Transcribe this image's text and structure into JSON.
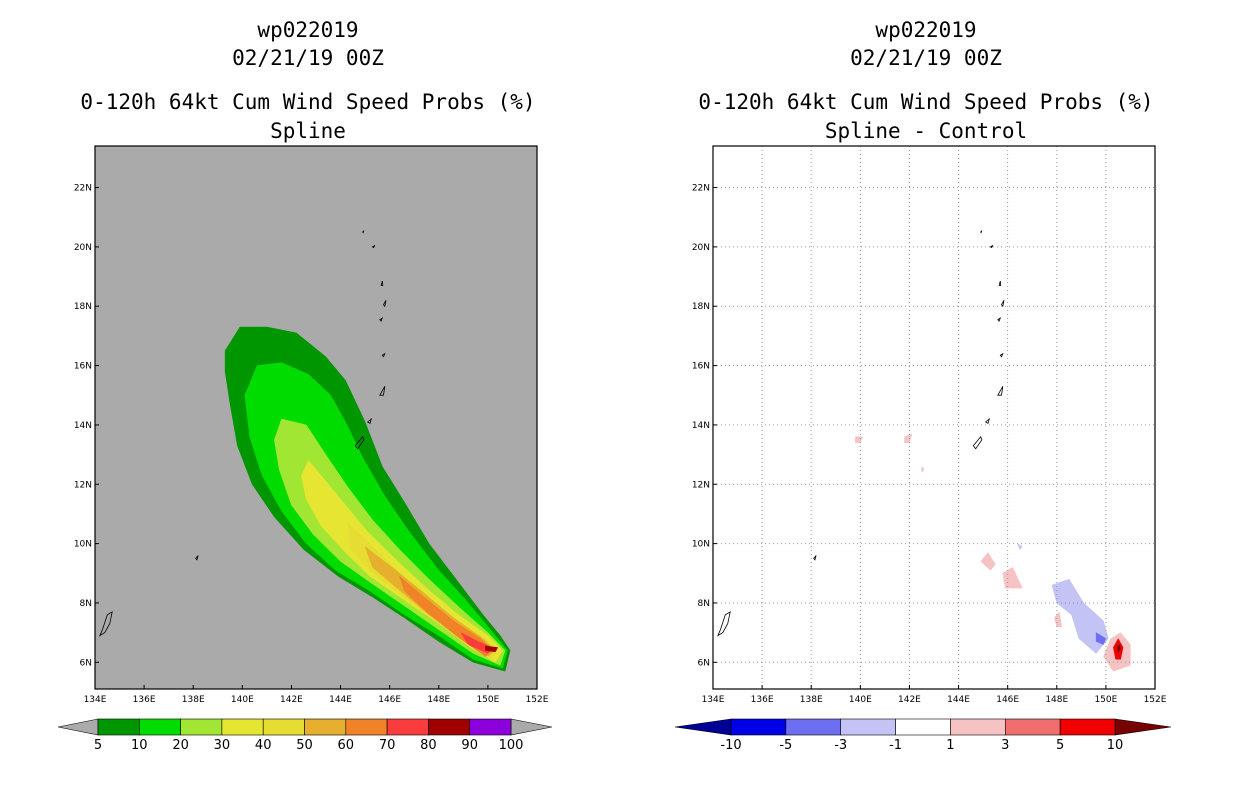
{
  "colors": {
    "map_background_left": "#aaaaaa",
    "map_background_right": "#ffffff",
    "grid": "#999999",
    "coast": "#000000"
  },
  "chart_data": [
    {
      "type": "heatmap",
      "storm_id": "wp022019",
      "date": "02/21/19 00Z",
      "title": "0-120h 64kt Cum Wind Speed Probs (%)",
      "subtitle": "Spline",
      "x_ticks": [
        "134E",
        "136E",
        "138E",
        "140E",
        "142E",
        "144E",
        "146E",
        "148E",
        "150E",
        "152E"
      ],
      "y_ticks": [
        "6N",
        "8N",
        "10N",
        "12N",
        "14N",
        "16N",
        "18N",
        "20N",
        "22N"
      ],
      "xlim": [
        134,
        152
      ],
      "ylim": [
        5.1,
        23.4
      ],
      "grid": false,
      "colorbar": {
        "labels": [
          "5",
          "10",
          "20",
          "30",
          "40",
          "50",
          "60",
          "70",
          "80",
          "90",
          "100"
        ],
        "colors": [
          "#009600",
          "#00dc00",
          "#a0e632",
          "#e6e632",
          "#e6dc32",
          "#e6af2d",
          "#f08228",
          "#fa3c3c",
          "#a00000",
          "#8c00dc"
        ],
        "under_color": "#aaaaaa",
        "over_color": "#aaaaaa"
      },
      "contours": [
        {
          "level": 5,
          "color": "#009600",
          "points": [
            [
              139.9,
              17.3
            ],
            [
              141.0,
              17.3
            ],
            [
              142.2,
              17.1
            ],
            [
              143.4,
              16.3
            ],
            [
              144.2,
              15.5
            ],
            [
              145.0,
              14.1
            ],
            [
              145.7,
              12.6
            ],
            [
              146.6,
              11.4
            ],
            [
              147.6,
              10.0
            ],
            [
              148.8,
              8.7
            ],
            [
              149.8,
              7.6
            ],
            [
              150.5,
              6.9
            ],
            [
              150.9,
              6.4
            ],
            [
              150.7,
              5.7
            ],
            [
              149.4,
              6.0
            ],
            [
              148.0,
              6.7
            ],
            [
              146.6,
              7.5
            ],
            [
              145.3,
              8.2
            ],
            [
              143.9,
              8.9
            ],
            [
              142.5,
              9.8
            ],
            [
              141.3,
              10.9
            ],
            [
              140.4,
              12.0
            ],
            [
              139.8,
              13.3
            ],
            [
              139.5,
              14.7
            ],
            [
              139.3,
              15.8
            ],
            [
              139.3,
              16.5
            ]
          ]
        },
        {
          "level": 10,
          "color": "#00dc00",
          "points": [
            [
              140.6,
              16.0
            ],
            [
              141.6,
              16.1
            ],
            [
              142.7,
              15.7
            ],
            [
              143.6,
              15.0
            ],
            [
              144.2,
              14.1
            ],
            [
              144.9,
              12.9
            ],
            [
              145.8,
              11.6
            ],
            [
              146.8,
              10.4
            ],
            [
              148.0,
              9.1
            ],
            [
              149.1,
              8.1
            ],
            [
              150.2,
              7.0
            ],
            [
              150.8,
              6.4
            ],
            [
              150.6,
              5.8
            ],
            [
              149.4,
              6.1
            ],
            [
              148.0,
              6.9
            ],
            [
              146.6,
              7.6
            ],
            [
              145.2,
              8.4
            ],
            [
              143.8,
              9.1
            ],
            [
              142.6,
              10.0
            ],
            [
              141.6,
              11.1
            ],
            [
              140.8,
              12.3
            ],
            [
              140.3,
              13.6
            ],
            [
              140.1,
              15.0
            ]
          ]
        },
        {
          "level": 20,
          "color": "#a0e632",
          "points": [
            [
              141.6,
              14.2
            ],
            [
              142.6,
              14.0
            ],
            [
              143.4,
              13.0
            ],
            [
              144.3,
              11.9
            ],
            [
              145.3,
              10.8
            ],
            [
              146.4,
              9.8
            ],
            [
              147.6,
              8.8
            ],
            [
              148.9,
              7.8
            ],
            [
              150.0,
              7.0
            ],
            [
              150.7,
              6.4
            ],
            [
              150.5,
              5.9
            ],
            [
              149.4,
              6.3
            ],
            [
              148.0,
              7.1
            ],
            [
              146.6,
              7.9
            ],
            [
              145.2,
              8.7
            ],
            [
              144.0,
              9.4
            ],
            [
              142.9,
              10.3
            ],
            [
              142.0,
              11.3
            ],
            [
              141.5,
              12.5
            ],
            [
              141.3,
              13.5
            ]
          ]
        },
        {
          "level": 30,
          "color": "#e6e632",
          "points": [
            [
              142.7,
              12.8
            ],
            [
              143.3,
              12.2
            ],
            [
              144.2,
              11.3
            ],
            [
              145.1,
              10.4
            ],
            [
              146.2,
              9.5
            ],
            [
              147.5,
              8.5
            ],
            [
              148.8,
              7.6
            ],
            [
              150.0,
              6.9
            ],
            [
              150.6,
              6.4
            ],
            [
              150.3,
              6.0
            ],
            [
              149.3,
              6.5
            ],
            [
              148.0,
              7.3
            ],
            [
              146.6,
              8.1
            ],
            [
              145.2,
              8.9
            ],
            [
              144.2,
              9.7
            ],
            [
              143.2,
              10.6
            ],
            [
              142.6,
              11.5
            ],
            [
              142.4,
              12.3
            ]
          ]
        },
        {
          "level": 40,
          "color": "#e6dc32",
          "points": [
            [
              144.3,
              10.7
            ],
            [
              145.2,
              10.0
            ],
            [
              146.3,
              9.1
            ],
            [
              147.5,
              8.2
            ],
            [
              148.8,
              7.4
            ],
            [
              149.9,
              6.8
            ],
            [
              150.4,
              6.4
            ],
            [
              150.1,
              6.1
            ],
            [
              149.0,
              6.7
            ],
            [
              147.7,
              7.5
            ],
            [
              146.4,
              8.3
            ],
            [
              145.2,
              9.1
            ],
            [
              144.4,
              9.8
            ]
          ]
        },
        {
          "level": 50,
          "color": "#e6af2d",
          "points": [
            [
              145.0,
              9.9
            ],
            [
              146.1,
              9.2
            ],
            [
              147.3,
              8.4
            ],
            [
              148.6,
              7.5
            ],
            [
              149.8,
              6.8
            ],
            [
              150.3,
              6.4
            ],
            [
              150.0,
              6.2
            ],
            [
              148.9,
              6.8
            ],
            [
              147.6,
              7.6
            ],
            [
              146.3,
              8.5
            ],
            [
              145.3,
              9.2
            ]
          ]
        },
        {
          "level": 60,
          "color": "#f08228",
          "points": [
            [
              146.4,
              8.9
            ],
            [
              147.4,
              8.2
            ],
            [
              148.6,
              7.4
            ],
            [
              149.7,
              6.8
            ],
            [
              150.2,
              6.4
            ],
            [
              149.9,
              6.2
            ],
            [
              148.7,
              6.9
            ],
            [
              147.5,
              7.7
            ],
            [
              146.6,
              8.4
            ]
          ]
        },
        {
          "level": 70,
          "color": "#fa3c3c",
          "points": [
            [
              148.9,
              7.0
            ],
            [
              149.6,
              6.7
            ],
            [
              150.2,
              6.5
            ],
            [
              150.0,
              6.3
            ],
            [
              149.2,
              6.6
            ]
          ]
        },
        {
          "level": 80,
          "color": "#a00000",
          "points": [
            [
              149.9,
              6.55
            ],
            [
              150.4,
              6.5
            ],
            [
              150.3,
              6.35
            ],
            [
              149.9,
              6.4
            ]
          ]
        }
      ]
    },
    {
      "type": "heatmap",
      "storm_id": "wp022019",
      "date": "02/21/19 00Z",
      "title": "0-120h 64kt Cum Wind Speed Probs (%)",
      "subtitle": "Spline - Control",
      "x_ticks": [
        "134E",
        "136E",
        "138E",
        "140E",
        "142E",
        "144E",
        "146E",
        "148E",
        "150E",
        "152E"
      ],
      "y_ticks": [
        "6N",
        "8N",
        "10N",
        "12N",
        "14N",
        "16N",
        "18N",
        "20N",
        "22N"
      ],
      "xlim": [
        134,
        152
      ],
      "ylim": [
        5.1,
        23.4
      ],
      "grid": true,
      "colorbar": {
        "labels": [
          "-10",
          "-5",
          "-3",
          "-1",
          "1",
          "3",
          "5",
          "10"
        ],
        "colors": [
          "#0000e6",
          "#6e6ef0",
          "#c3c3f5",
          "#ffffff",
          "#f5c3c3",
          "#f06e6e",
          "#f00000"
        ],
        "under_color": "#000096",
        "over_color": "#780000"
      },
      "contours": [
        {
          "level": -3,
          "color": "#c3c3f5",
          "points": [
            [
              147.8,
              8.6
            ],
            [
              148.5,
              8.8
            ],
            [
              149.1,
              8.0
            ],
            [
              149.9,
              7.4
            ],
            [
              150.1,
              6.8
            ],
            [
              149.6,
              6.3
            ],
            [
              148.9,
              6.8
            ],
            [
              148.6,
              7.6
            ],
            [
              148.0,
              8.0
            ]
          ]
        },
        {
          "level": -5,
          "color": "#6e6ef0",
          "points": [
            [
              149.6,
              7.0
            ],
            [
              150.0,
              6.8
            ],
            [
              149.9,
              6.6
            ],
            [
              149.6,
              6.7
            ]
          ]
        },
        {
          "level": -3,
          "color": "#c3c3f5",
          "points": [
            [
              146.4,
              10.0
            ],
            [
              146.6,
              9.9
            ],
            [
              146.5,
              9.8
            ]
          ]
        },
        {
          "level": 1,
          "color": "#f5c3c3",
          "points": [
            [
              139.8,
              13.6
            ],
            [
              140.1,
              13.6
            ],
            [
              140.0,
              13.4
            ],
            [
              139.8,
              13.4
            ]
          ]
        },
        {
          "level": 1,
          "color": "#f5c3c3",
          "points": [
            [
              141.8,
              13.6
            ],
            [
              142.1,
              13.7
            ],
            [
              142.0,
              13.4
            ],
            [
              141.8,
              13.4
            ]
          ]
        },
        {
          "level": 1,
          "color": "#f5c3c3",
          "points": [
            [
              142.5,
              12.6
            ],
            [
              142.6,
              12.5
            ],
            [
              142.5,
              12.4
            ]
          ]
        },
        {
          "level": 1,
          "color": "#f5c3c3",
          "points": [
            [
              144.9,
              9.4
            ],
            [
              145.2,
              9.7
            ],
            [
              145.5,
              9.3
            ],
            [
              145.3,
              9.1
            ]
          ]
        },
        {
          "level": 1,
          "color": "#f5c3c3",
          "points": [
            [
              145.8,
              9.0
            ],
            [
              146.2,
              9.2
            ],
            [
              146.6,
              8.5
            ],
            [
              145.9,
              8.5
            ]
          ]
        },
        {
          "level": 1,
          "color": "#f5c3c3",
          "points": [
            [
              147.9,
              7.5
            ],
            [
              148.1,
              7.7
            ],
            [
              148.2,
              7.2
            ],
            [
              148.0,
              7.2
            ]
          ]
        },
        {
          "level": 1,
          "color": "#f5c3c3",
          "points": [
            [
              149.9,
              6.2
            ],
            [
              150.2,
              6.8
            ],
            [
              150.6,
              7.0
            ],
            [
              151.0,
              6.6
            ],
            [
              151.0,
              5.9
            ],
            [
              150.3,
              5.7
            ]
          ]
        },
        {
          "level": 5,
          "color": "#f00000",
          "points": [
            [
              150.3,
              6.5
            ],
            [
              150.5,
              6.8
            ],
            [
              150.7,
              6.5
            ],
            [
              150.6,
              6.1
            ],
            [
              150.4,
              6.1
            ]
          ]
        },
        {
          "level": 10,
          "color": "#780000",
          "points": [
            [
              150.45,
              6.5
            ],
            [
              150.55,
              6.6
            ],
            [
              150.6,
              6.45
            ],
            [
              150.5,
              6.35
            ]
          ]
        }
      ]
    }
  ]
}
